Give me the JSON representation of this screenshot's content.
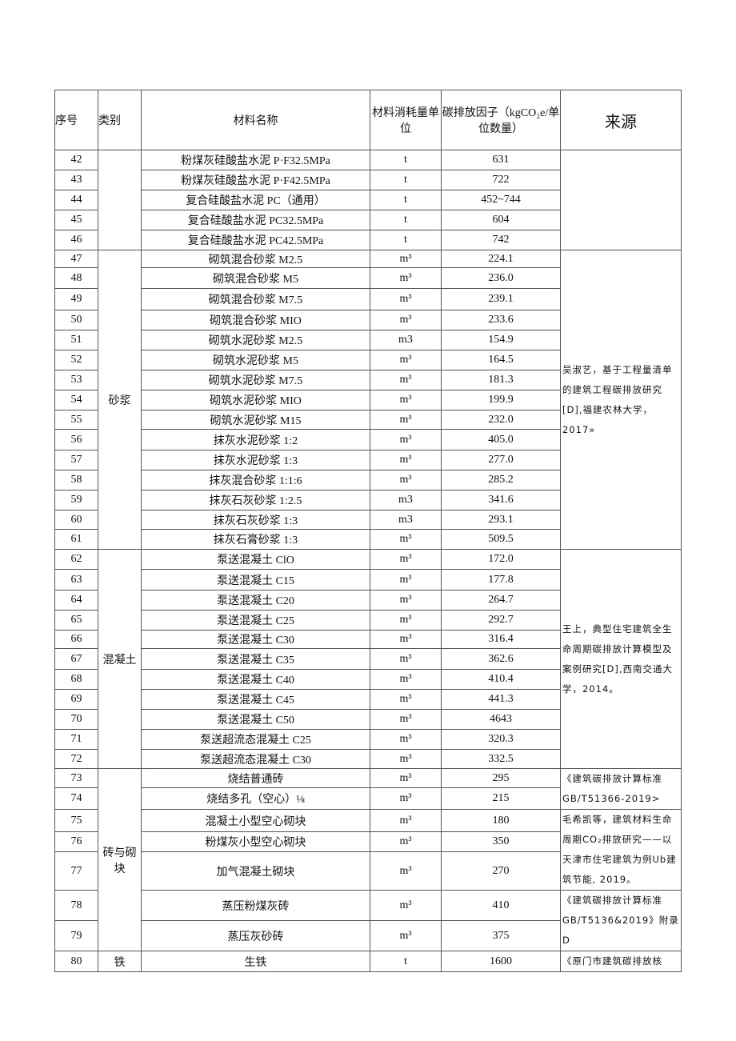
{
  "headers": {
    "no": "序号",
    "category": "类别",
    "name": "材料名称",
    "unit": "材料消耗量单位",
    "factor": "碳排放因子（kgCO₂e/单位数量）",
    "source": "来源"
  },
  "rows": [
    {
      "no": "42",
      "name": "粉煤灰硅酸盐水泥 P·F32.5MPa",
      "unit": "t",
      "factor": "631"
    },
    {
      "no": "43",
      "name": "粉煤灰硅酸盐水泥 P·F42.5MPa",
      "unit": "t",
      "factor": "722"
    },
    {
      "no": "44",
      "name": "复合硅酸盐水泥 PC（通用）",
      "unit": "t",
      "factor": "452~744"
    },
    {
      "no": "45",
      "name": "复合硅酸盐水泥 PC32.5MPa",
      "unit": "t",
      "factor": "604"
    },
    {
      "no": "46",
      "name": "复合硅酸盐水泥 PC42.5MPa",
      "unit": "t",
      "factor": "742"
    },
    {
      "no": "47",
      "name": "砌筑混合砂浆 M2.5",
      "unit": "m³",
      "factor": "224.1"
    },
    {
      "no": "48",
      "name": "砌筑混合砂浆 M5",
      "unit": "m³",
      "factor": "236.0"
    },
    {
      "no": "49",
      "name": "砌筑混合砂浆 M7.5",
      "unit": "m³",
      "factor": "239.1"
    },
    {
      "no": "50",
      "name": "砌筑混合砂浆 MIO",
      "unit": "m³",
      "factor": "233.6"
    },
    {
      "no": "51",
      "name": "砌筑水泥砂浆 M2.5",
      "unit": "m3",
      "factor": "154.9"
    },
    {
      "no": "52",
      "name": "砌筑水泥砂浆 M5",
      "unit": "m³",
      "factor": "164.5"
    },
    {
      "no": "53",
      "name": "砌筑水泥砂浆 M7.5",
      "unit": "m³",
      "factor": "181.3"
    },
    {
      "no": "54",
      "name": "砌筑水泥砂浆 MIO",
      "unit": "m³",
      "factor": "199.9"
    },
    {
      "no": "55",
      "name": "砌筑水泥砂浆 M15",
      "unit": "m³",
      "factor": "232.0"
    },
    {
      "no": "56",
      "name": "抹灰水泥砂浆 1:2",
      "unit": "m³",
      "factor": "405.0"
    },
    {
      "no": "57",
      "name": "抹灰水泥砂浆 1:3",
      "unit": "m³",
      "factor": "277.0"
    },
    {
      "no": "58",
      "name": "抹灰混合砂浆 1:1:6",
      "unit": "m³",
      "factor": "285.2"
    },
    {
      "no": "59",
      "name": "抹灰石灰砂浆 1:2.5",
      "unit": "m3",
      "factor": "341.6"
    },
    {
      "no": "60",
      "name": "抹灰石灰砂浆 1:3",
      "unit": "m3",
      "factor": "293.1"
    },
    {
      "no": "61",
      "name": "抹灰石膏砂浆 1:3",
      "unit": "m³",
      "factor": "509.5"
    },
    {
      "no": "62",
      "name": "泵送混凝土 ClO",
      "unit": "m³",
      "factor": "172.0"
    },
    {
      "no": "63",
      "name": "泵送混凝土 C15",
      "unit": "m³",
      "factor": "177.8"
    },
    {
      "no": "64",
      "name": "泵送混凝土 C20",
      "unit": "m³",
      "factor": "264.7"
    },
    {
      "no": "65",
      "name": "泵送混凝土 C25",
      "unit": "m³",
      "factor": "292.7"
    },
    {
      "no": "66",
      "name": "泵送混凝土 C30",
      "unit": "m³",
      "factor": "316.4"
    },
    {
      "no": "67",
      "name": "泵送混凝土 C35",
      "unit": "m³",
      "factor": "362.6"
    },
    {
      "no": "68",
      "name": "泵送混凝土 C40",
      "unit": "m³",
      "factor": "410.4"
    },
    {
      "no": "69",
      "name": "泵送混凝土 C45",
      "unit": "m³",
      "factor": "441.3"
    },
    {
      "no": "70",
      "name": "泵送混凝土 C50",
      "unit": "m³",
      "factor": "4643"
    },
    {
      "no": "71",
      "name": "泵送超流态混凝土 C25",
      "unit": "m³",
      "factor": "320.3"
    },
    {
      "no": "72",
      "name": "泵送超流态混凝土 C30",
      "unit": "m³",
      "factor": "332.5"
    },
    {
      "no": "73",
      "name": "烧结普通砖",
      "unit": "m³",
      "factor": "295"
    },
    {
      "no": "74",
      "name": "烧结多孔（空心）⅛",
      "unit": "m³",
      "factor": "215"
    },
    {
      "no": "75",
      "name": "混凝土小型空心砌块",
      "unit": "m³",
      "factor": "180"
    },
    {
      "no": "76",
      "name": "粉煤灰小型空心砌块",
      "unit": "m³",
      "factor": "350"
    },
    {
      "no": "77",
      "name": "加气混凝土砌块",
      "unit": "m³",
      "factor": "270"
    },
    {
      "no": "78",
      "name": "蒸压粉煤灰砖",
      "unit": "m³",
      "factor": "410"
    },
    {
      "no": "79",
      "name": "蒸压灰砂砖",
      "unit": "m³",
      "factor": "375"
    },
    {
      "no": "80",
      "name": "生铁",
      "unit": "t",
      "factor": "1600"
    }
  ],
  "categories": [
    {
      "start": 0,
      "span": 5,
      "label": ""
    },
    {
      "start": 5,
      "span": 15,
      "label": "砂浆"
    },
    {
      "start": 20,
      "span": 11,
      "label": "混凝土"
    },
    {
      "start": 31,
      "span": 7,
      "label": "砖与砌块"
    },
    {
      "start": 38,
      "span": 1,
      "label": "铁"
    }
  ],
  "sources": [
    {
      "start": 0,
      "span": 5,
      "text": ""
    },
    {
      "start": 5,
      "span": 15,
      "text": "吴淑艺，基于工程量清单的建筑工程碳排放研究[D],福建农林大学，2017»"
    },
    {
      "start": 20,
      "span": 11,
      "text": "王上，典型住宅建筑全生命周期碳排放计算模型及案例研究[D],西南交通大学，2014。"
    },
    {
      "start": 31,
      "span": 2,
      "text": "《建筑碳排放计算标准GB/T51366-2019>"
    },
    {
      "start": 33,
      "span": 3,
      "text": "毛希凯等，建筑材料生命周期CO₂排放研究——以天津市住宅建筑为例Ub建筑节能, 2019。"
    },
    {
      "start": 36,
      "span": 2,
      "text": "《建筑碳排放计算标准GB/T5136&2019》附录D"
    },
    {
      "start": 38,
      "span": 1,
      "text": "《原门市建筑碳排放核"
    }
  ]
}
